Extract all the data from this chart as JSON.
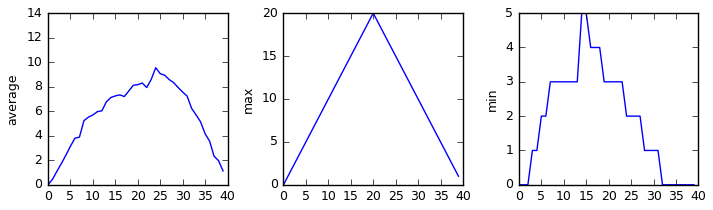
{
  "avg": [
    0.0,
    0.45,
    1.117,
    1.75,
    2.433,
    3.15,
    3.8,
    3.889,
    5.233,
    5.517,
    5.7,
    5.967,
    6.033,
    6.767,
    7.117,
    7.25,
    7.333,
    7.2,
    7.65,
    8.117,
    8.167,
    8.3,
    7.933,
    8.6,
    9.55,
    9.067,
    8.933,
    8.583,
    8.333,
    7.933,
    7.567,
    7.233,
    6.233,
    5.7,
    5.133,
    4.167,
    3.567,
    2.333,
    1.967,
    1.133
  ],
  "max_vals": [
    0,
    1,
    2,
    3,
    4,
    5,
    6,
    7,
    8,
    9,
    10,
    11,
    12,
    13,
    14,
    15,
    16,
    17,
    18,
    19,
    20,
    19,
    18,
    17,
    16,
    15,
    14,
    13,
    12,
    11,
    10,
    9,
    8,
    7,
    6,
    5,
    4,
    3,
    2,
    1
  ],
  "min_vals": [
    0,
    0,
    0,
    1,
    1,
    2,
    2,
    3,
    3,
    3,
    3,
    3,
    3,
    3,
    5,
    5,
    4,
    4,
    4,
    3,
    3,
    3,
    3,
    3,
    2,
    2,
    2,
    2,
    1,
    1,
    1,
    1,
    0,
    0,
    0,
    0,
    0,
    0,
    0,
    0
  ],
  "line_color": "#0000ff",
  "bg_color": "#ffffff",
  "ylabel_avg": "average",
  "ylabel_max": "max",
  "ylabel_min": "min",
  "ylim_avg": [
    0,
    14
  ],
  "ylim_max": [
    0,
    20
  ],
  "ylim_min": [
    0,
    5
  ],
  "xlim": [
    0,
    40
  ],
  "font_size": 9,
  "xticks": [
    0,
    5,
    10,
    15,
    20,
    25,
    30,
    35,
    40
  ],
  "yticks_avg": [
    0,
    2,
    4,
    6,
    8,
    10,
    12,
    14
  ],
  "yticks_max": [
    0,
    5,
    10,
    15,
    20
  ],
  "yticks_min": [
    0,
    1,
    2,
    3,
    4,
    5
  ]
}
